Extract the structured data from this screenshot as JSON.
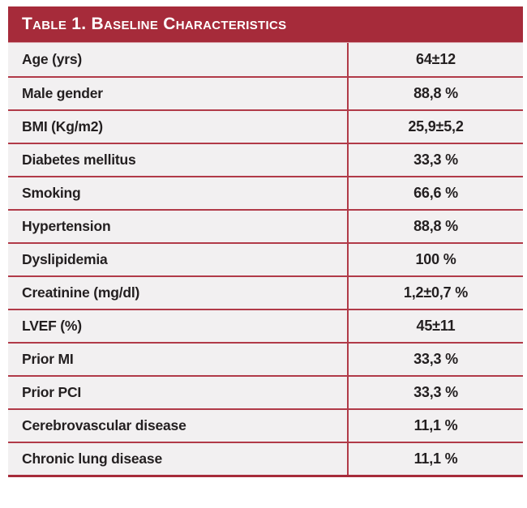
{
  "colors": {
    "header_red": "#a62b3a",
    "rule_red": "#b13a48",
    "row_bg": "#f2f0f1",
    "text": "#231f20",
    "header_text": "#ffffff"
  },
  "table": {
    "title": "Table 1. Baseline Characteristics",
    "rows": [
      {
        "label": "Age (yrs)",
        "value": "64±12"
      },
      {
        "label": "Male gender",
        "value": "88,8 %"
      },
      {
        "label": "BMI (Kg/m2)",
        "value": "25,9±5,2"
      },
      {
        "label": "Diabetes mellitus",
        "value": "33,3 %"
      },
      {
        "label": "Smoking",
        "value": "66,6 %"
      },
      {
        "label": "Hypertension",
        "value": "88,8 %"
      },
      {
        "label": "Dyslipidemia",
        "value": "100 %"
      },
      {
        "label": "Creatinine (mg/dl)",
        "value": "1,2±0,7 %"
      },
      {
        "label": "LVEF (%)",
        "value": "45±11"
      },
      {
        "label": "Prior MI",
        "value": "33,3 %"
      },
      {
        "label": "Prior PCI",
        "value": "33,3 %"
      },
      {
        "label": "Cerebrovascular disease",
        "value": "11,1 %"
      },
      {
        "label": "Chronic lung disease",
        "value": "11,1 %"
      }
    ]
  }
}
